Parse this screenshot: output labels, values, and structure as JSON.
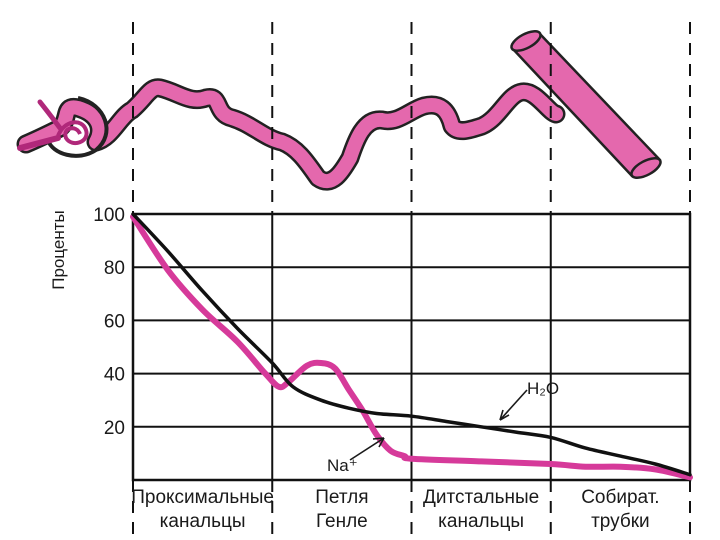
{
  "chart_data": {
    "type": "line",
    "ylabel": "Проценты",
    "ylim": [
      0,
      100
    ],
    "yticks": [
      "100",
      "80",
      "60",
      "40",
      "20"
    ],
    "xlim": [
      0,
      4
    ],
    "grid": true,
    "segments": [
      {
        "line1": "Проксимальные",
        "line2": "канальцы",
        "range": [
          0,
          1
        ]
      },
      {
        "line1": "Петля",
        "line2": "Генле",
        "range": [
          1,
          2
        ]
      },
      {
        "line1": "Дитстальные",
        "line2": "канальцы",
        "range": [
          2,
          3
        ]
      },
      {
        "line1": "Собират.",
        "line2": "трубки",
        "range": [
          3,
          4
        ]
      }
    ],
    "series": [
      {
        "name": "H₂O",
        "color": "#111111",
        "points": [
          [
            0,
            100
          ],
          [
            0.25,
            86
          ],
          [
            0.5,
            71
          ],
          [
            0.75,
            57
          ],
          [
            1,
            44
          ],
          [
            1.15,
            35
          ],
          [
            1.35,
            30
          ],
          [
            1.55,
            27
          ],
          [
            1.75,
            25
          ],
          [
            2,
            24
          ],
          [
            2.25,
            22
          ],
          [
            2.5,
            20
          ],
          [
            2.75,
            18
          ],
          [
            3,
            16
          ],
          [
            3.25,
            12
          ],
          [
            3.5,
            9
          ],
          [
            3.75,
            6
          ],
          [
            4,
            2
          ]
        ]
      },
      {
        "name": "Na⁺",
        "color": "#d63a9a",
        "points": [
          [
            0,
            99
          ],
          [
            0.25,
            79
          ],
          [
            0.5,
            64
          ],
          [
            0.75,
            52
          ],
          [
            0.95,
            40
          ],
          [
            1.05,
            35
          ],
          [
            1.12,
            37
          ],
          [
            1.25,
            43
          ],
          [
            1.35,
            44
          ],
          [
            1.45,
            42
          ],
          [
            1.55,
            34
          ],
          [
            1.65,
            26
          ],
          [
            1.75,
            17
          ],
          [
            1.85,
            11
          ],
          [
            1.95,
            9
          ],
          [
            2,
            8
          ],
          [
            2.5,
            7
          ],
          [
            3,
            6
          ],
          [
            3.25,
            5
          ],
          [
            3.5,
            5
          ],
          [
            3.75,
            4
          ],
          [
            4,
            1
          ]
        ]
      }
    ],
    "annotations": {
      "h2o": "H₂O",
      "na": "Na⁺"
    }
  }
}
